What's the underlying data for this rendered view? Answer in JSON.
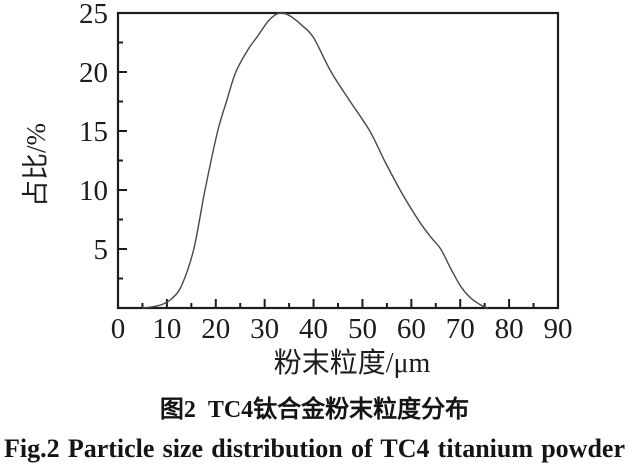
{
  "figure": {
    "caption_zh": "图2  TC4钛合金粉末粒度分布",
    "caption_en": "Fig.2 Particle size distribution of TC4 titanium powder"
  },
  "chart_data": {
    "type": "line",
    "title": "",
    "xlabel": "粉末粒度/μm",
    "ylabel": "占比/%",
    "xlim": [
      0,
      90
    ],
    "ylim": [
      0,
      25
    ],
    "x_major_ticks": [
      0,
      10,
      20,
      30,
      40,
      50,
      60,
      70,
      80,
      90
    ],
    "x_minor_ticks": [
      5,
      15,
      25,
      35,
      45,
      55,
      65,
      75,
      85
    ],
    "y_major_ticks": [
      5,
      10,
      15,
      20,
      25
    ],
    "y_minor_ticks": [
      2.5,
      7.5,
      12.5,
      17.5,
      22.5
    ],
    "grid": false,
    "legend_position": "none",
    "axis_color": "#1c1c1c",
    "line_color": "#474747",
    "series": [
      {
        "name": "TC4 powder particle size distribution",
        "points": [
          [
            5,
            0
          ],
          [
            7,
            0.1
          ],
          [
            9,
            0.3
          ],
          [
            11,
            0.8
          ],
          [
            13,
            1.9
          ],
          [
            15.5,
            5
          ],
          [
            17.8,
            10
          ],
          [
            20.4,
            15
          ],
          [
            22.2,
            17.5
          ],
          [
            24.1,
            20
          ],
          [
            26.6,
            21.9
          ],
          [
            28.5,
            23
          ],
          [
            30.5,
            24.2
          ],
          [
            32,
            24.8
          ],
          [
            33.3,
            25
          ],
          [
            35,
            24.8
          ],
          [
            37.5,
            24
          ],
          [
            40,
            22.9
          ],
          [
            43.6,
            20
          ],
          [
            47.5,
            17.5
          ],
          [
            51.5,
            15
          ],
          [
            54.5,
            12.5
          ],
          [
            57.7,
            10
          ],
          [
            60,
            8.4
          ],
          [
            62,
            7.1
          ],
          [
            64,
            6
          ],
          [
            66,
            5
          ],
          [
            68,
            3.4
          ],
          [
            70,
            1.9
          ],
          [
            72,
            0.9
          ],
          [
            74,
            0.3
          ],
          [
            75.5,
            0
          ]
        ]
      }
    ]
  }
}
